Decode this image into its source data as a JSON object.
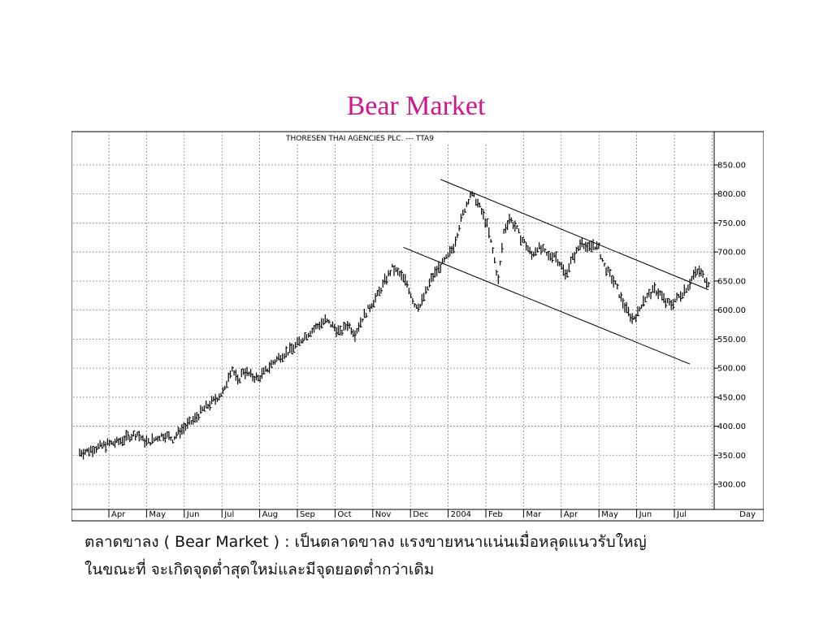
{
  "slide": {
    "title": "Bear Market",
    "caption_line1": "ตลาดขาลง ( Bear Market ) : เป็นตลาดขาลง แรงขายหนาแน่นเมื่อหลุดแนวรับใหญ่",
    "caption_line2": "ในขณะที่ จะเกิดจุดต่ำสุดใหม่และมีจุดยอดต่ำกว่าเดิม"
  },
  "colors": {
    "title": "#d4168c",
    "grid": "#666666",
    "bars": "#000000",
    "trendlines": "#000000"
  },
  "chart_data": {
    "type": "line",
    "title": "THORESEN THAI AGENCIES PLC. --- TTA9",
    "xlabel": "Day",
    "ylabel": "",
    "ylim": [
      270,
      890
    ],
    "grid": true,
    "y_ticks": [
      "850.00",
      "800.00",
      "750.00",
      "700.00",
      "650.00",
      "600.00",
      "550.00",
      "500.00",
      "450.00",
      "400.00",
      "350.00",
      "300.00"
    ],
    "x_ticks": [
      "Apr",
      "May",
      "Jun",
      "Jul",
      "Aug",
      "Sep",
      "Oct",
      "Nov",
      "Dec",
      "2004",
      "Feb",
      "Mar",
      "Apr",
      "May",
      "Jun",
      "Jul"
    ],
    "series": [
      {
        "x": [
          0,
          4,
          8,
          12,
          16,
          20,
          24,
          28,
          31,
          34,
          37,
          40,
          43,
          46,
          50,
          54,
          58,
          62,
          66,
          70,
          74,
          78,
          80,
          82,
          85,
          88,
          92,
          96,
          100,
          104,
          108,
          112,
          116,
          120,
          124,
          128,
          132,
          136,
          140,
          144,
          148,
          152,
          156,
          160,
          164,
          168,
          172,
          176,
          180,
          183,
          186,
          189,
          192,
          195,
          198,
          201,
          204,
          207,
          210,
          213,
          216,
          219,
          222,
          225,
          228,
          231,
          234,
          237,
          240,
          243,
          246,
          249,
          252,
          255,
          258,
          261,
          264,
          267,
          270,
          273,
          276,
          279,
          282,
          285,
          288,
          291,
          294,
          297,
          300,
          303,
          306,
          309,
          312,
          315,
          318,
          321,
          324,
          327,
          330,
          333,
          336,
          338
        ],
        "y": [
          355,
          357,
          362,
          366,
          370,
          372,
          378,
          384,
          387,
          376,
          372,
          377,
          383,
          385,
          378,
          392,
          402,
          412,
          428,
          438,
          450,
          462,
          488,
          500,
          476,
          496,
          487,
          482,
          495,
          510,
          521,
          528,
          538,
          552,
          563,
          573,
          582,
          573,
          560,
          576,
          560,
          586,
          606,
          625,
          649,
          672,
          662,
          645,
          610,
          607,
          630,
          653,
          668,
          680,
          692,
          710,
          745,
          775,
          800,
          790,
          770,
          746,
          702,
          651,
          735,
          758,
          745,
          725,
          712,
          694,
          708,
          702,
          692,
          696,
          682,
          660,
          683,
          700,
          720,
          704,
          713,
          706,
          676,
          660,
          644,
          620,
          600,
          585,
          594,
          618,
          626,
          635,
          628,
          613,
          610,
          620,
          630,
          642,
          660,
          667,
          655,
          648
        ]
      }
    ],
    "annotations": []
  }
}
